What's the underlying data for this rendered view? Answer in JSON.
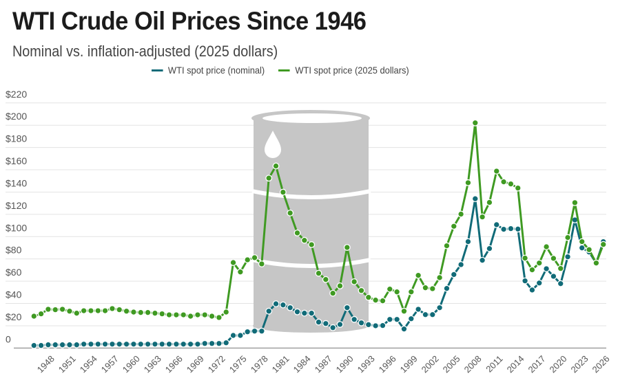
{
  "title": "WTI Crude Oil Prices Since 1946",
  "subtitle": "Nominal vs. inflation-adjusted (2025 dollars)",
  "colors": {
    "nominal": "#116b78",
    "real": "#3f9a22",
    "barrel": "#c6c6c6"
  },
  "chart_data": {
    "type": "line",
    "title": "WTI Crude Oil Prices Since 1946",
    "xlabel": "",
    "ylabel": "",
    "ylim": [
      0,
      220
    ],
    "xlim": [
      1946,
      2026
    ],
    "grid": true,
    "legend_position": "top-center",
    "y_ticks": [
      {
        "value": 0,
        "label": "0"
      },
      {
        "value": 20,
        "label": "$20"
      },
      {
        "value": 40,
        "label": "$40"
      },
      {
        "value": 60,
        "label": "$60"
      },
      {
        "value": 80,
        "label": "$80"
      },
      {
        "value": 100,
        "label": "$100"
      },
      {
        "value": 120,
        "label": "$120"
      },
      {
        "value": 140,
        "label": "$140"
      },
      {
        "value": 160,
        "label": "$160"
      },
      {
        "value": 180,
        "label": "$180"
      },
      {
        "value": 200,
        "label": "$200"
      },
      {
        "value": 220,
        "label": "$220"
      }
    ],
    "x_ticks": [
      "1948",
      "1951",
      "1954",
      "1957",
      "1960",
      "1963",
      "1966",
      "1969",
      "1972",
      "1975",
      "1978",
      "1981",
      "1984",
      "1987",
      "1990",
      "1993",
      "1996",
      "1999",
      "2002",
      "2005",
      "2008",
      "2011",
      "2014",
      "2017",
      "2020",
      "2023",
      "2026"
    ],
    "x_start": 1946,
    "series": [
      {
        "name": "WTI spot price (nominal)",
        "color": "#116b78",
        "values": [
          2.3,
          2.3,
          2.9,
          2.9,
          2.9,
          2.9,
          2.9,
          3.5,
          3.5,
          3.5,
          3.5,
          3.5,
          3.5,
          3.5,
          3.5,
          3.5,
          3.5,
          3.5,
          3.5,
          3.5,
          3.5,
          3.5,
          3.5,
          3.5,
          4.1,
          4.1,
          4.1,
          4.7,
          11.3,
          11.3,
          14.6,
          15.2,
          15.2,
          33.1,
          39.7,
          38.7,
          36.2,
          32.5,
          31.3,
          31.3,
          23.3,
          22.0,
          18.3,
          21.2,
          36.2,
          25.7,
          22.6,
          21.0,
          20.0,
          20.2,
          25.7,
          25.7,
          17.1,
          26.3,
          34.8,
          30.0,
          30.0,
          36.2,
          53.5,
          66.0,
          74.9,
          95.5,
          134.0,
          78.8,
          89.3,
          110.7,
          106.6,
          107.2,
          106.8,
          60.3,
          52.1,
          58.4,
          71.2,
          64.4,
          57.8,
          81.9,
          115.0,
          89.9,
          86.2,
          76.3,
          95.5
        ]
      },
      {
        "name": "WTI spot price (2025 dollars)",
        "color": "#3f9a22",
        "values": [
          28.6,
          30.7,
          34.8,
          34.4,
          34.8,
          33.1,
          31.3,
          33.5,
          33.5,
          33.5,
          33.5,
          35.4,
          34.4,
          33.1,
          32.3,
          31.9,
          31.9,
          31.3,
          30.7,
          29.8,
          29.8,
          29.8,
          28.6,
          29.8,
          29.8,
          28.6,
          27.4,
          32.3,
          76.7,
          68.3,
          79.2,
          81.1,
          75.5,
          152.5,
          163.4,
          139.9,
          121.2,
          103.3,
          96.7,
          92.8,
          67.1,
          61.5,
          49.2,
          55.8,
          90.3,
          59.5,
          51.6,
          45.5,
          43.0,
          42.4,
          52.9,
          50.4,
          33.1,
          50.4,
          65.2,
          54.1,
          53.3,
          63.2,
          91.8,
          109.3,
          120.2,
          148.4,
          202.1,
          117.7,
          130.7,
          158.8,
          149.2,
          147.3,
          143.6,
          80.7,
          70.2,
          76.3,
          90.9,
          80.5,
          71.4,
          99.2,
          130.5,
          95.5,
          88.3,
          76.3,
          93.0
        ]
      }
    ]
  }
}
